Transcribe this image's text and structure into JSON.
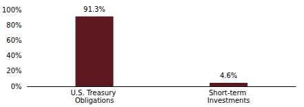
{
  "chart_data": {
    "type": "bar",
    "categories": [
      "U.S. Treasury Obligations",
      "Short-term Investments"
    ],
    "values": [
      91.3,
      4.6
    ],
    "value_labels": [
      "91.3%",
      "4.6%"
    ],
    "color": "#5c1a20",
    "ylim": [
      0,
      100
    ],
    "yticks": [
      {
        "value": 0,
        "label": "0%"
      },
      {
        "value": 20,
        "label": "20%"
      },
      {
        "value": 40,
        "label": "40%"
      },
      {
        "value": 60,
        "label": "60%"
      },
      {
        "value": 80,
        "label": "80%"
      },
      {
        "value": 100,
        "label": "100%"
      }
    ],
    "grid": false,
    "data_labels": true
  }
}
